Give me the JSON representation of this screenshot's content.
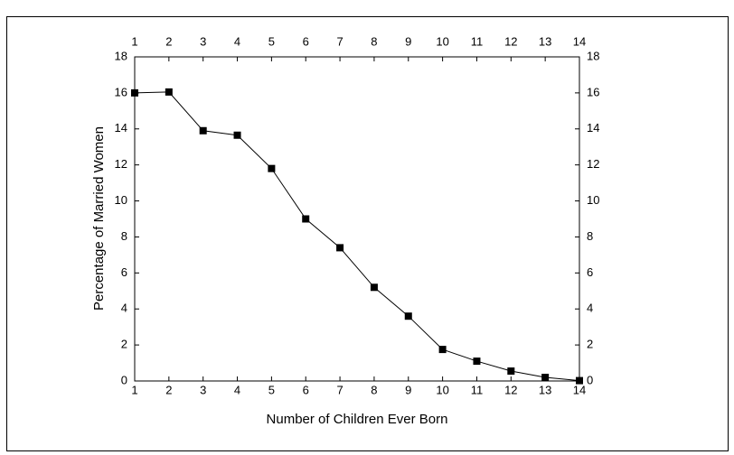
{
  "chart_data": {
    "type": "line",
    "x_label": "Number of Children Ever Born",
    "y_label": "Percentage of Married Women",
    "x": [
      1,
      2,
      3,
      4,
      5,
      6,
      7,
      8,
      9,
      10,
      11,
      12,
      13,
      14
    ],
    "series": [
      {
        "color": "#000000",
        "values": [
          16.0,
          16.05,
          13.9,
          13.65,
          11.8,
          9.0,
          7.4,
          5.2,
          3.6,
          1.75,
          1.1,
          0.55,
          0.2,
          0.02
        ]
      }
    ],
    "xlim": [
      1,
      14
    ],
    "xticks": [
      1,
      2,
      3,
      4,
      5,
      6,
      7,
      8,
      9,
      10,
      11,
      12,
      13,
      14
    ],
    "ylim": [
      0,
      18
    ],
    "yticks": [
      0,
      2,
      4,
      6,
      8,
      10,
      12,
      14,
      16,
      18
    ],
    "grid": false
  }
}
